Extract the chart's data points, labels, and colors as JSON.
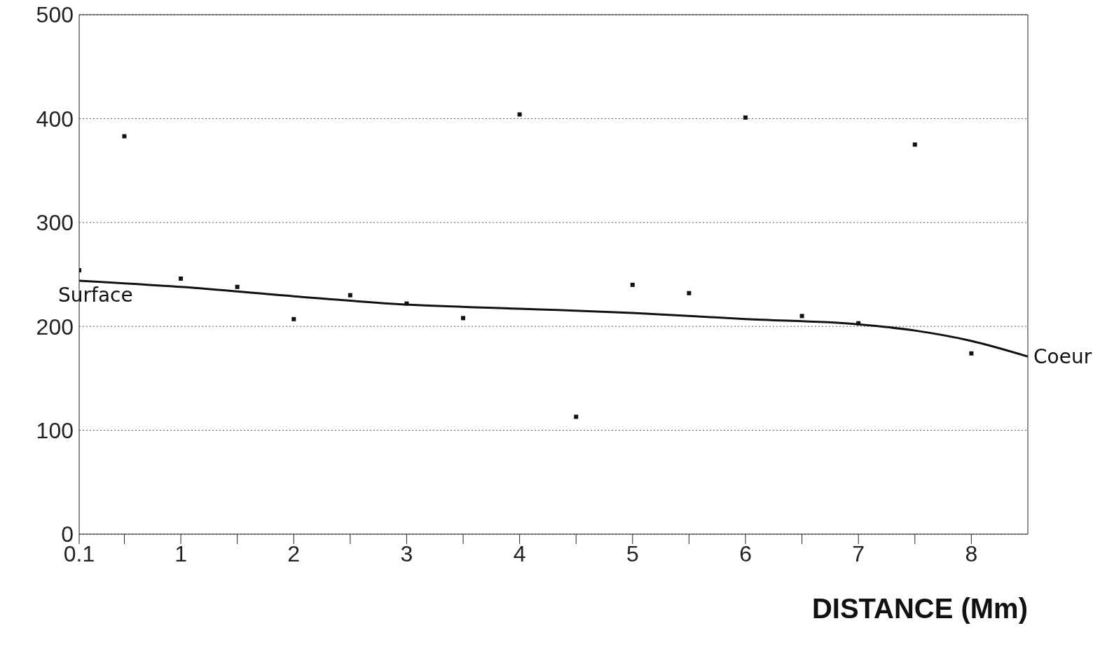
{
  "chart_data": {
    "type": "scatter",
    "xlabel": "DISTANCE   (Mm)",
    "xlim": [
      0.1,
      8.5
    ],
    "ylim": [
      0,
      500
    ],
    "xticks": [
      0.1,
      {
        "value": 0.5,
        "label": null
      },
      1,
      {
        "value": 1.5,
        "label": null
      },
      2,
      {
        "value": 2.5,
        "label": null
      },
      3,
      {
        "value": 3.5,
        "label": null
      },
      4,
      {
        "value": 4.5,
        "label": null
      },
      5,
      {
        "value": 5.5,
        "label": null
      },
      6,
      {
        "value": 6.5,
        "label": null
      },
      7,
      {
        "value": 7.5,
        "label": null
      },
      8
    ],
    "yticks": [
      0,
      100,
      200,
      300,
      400,
      500
    ],
    "grid": "y",
    "legend": false,
    "marker": "square",
    "series": [
      {
        "color": "#111111",
        "x": [
          0.1,
          0.5,
          1,
          1.5,
          2,
          2.5,
          3,
          3.5,
          4,
          4.5,
          5,
          5.5,
          6,
          6.5,
          7,
          7.5,
          8
        ],
        "values": [
          254,
          383,
          246,
          238,
          207,
          230,
          222,
          208,
          404,
          113,
          240,
          232,
          401,
          210,
          203,
          375,
          174
        ]
      },
      {
        "type": "line",
        "color": "#111111",
        "marker": "none",
        "line_style": "solid",
        "x": [
          0.1,
          1,
          2,
          3,
          4,
          5,
          6,
          7,
          7.5,
          8,
          8.5
        ],
        "values": [
          244,
          238,
          229,
          221,
          217,
          213,
          207,
          202,
          196,
          186,
          171
        ]
      }
    ],
    "annotations": [
      {
        "text": "Surface",
        "x": 0.1,
        "y": 244
      },
      {
        "text": "Coeur",
        "x": 8.5,
        "y": 171
      }
    ]
  }
}
